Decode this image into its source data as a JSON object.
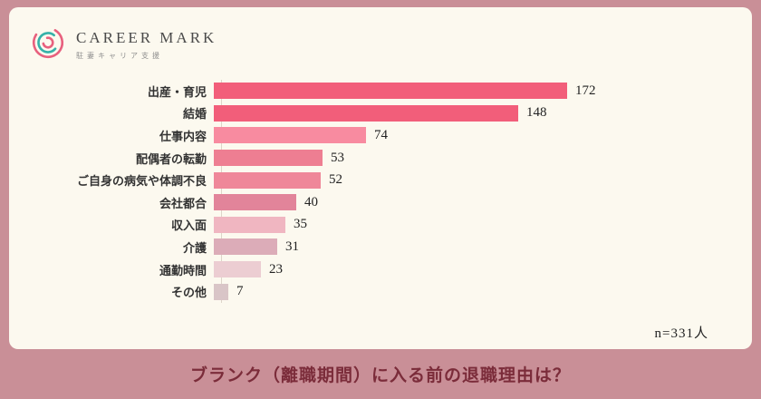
{
  "page": {
    "bg_color": "#c98f97",
    "card_bg": "#fcf9ef"
  },
  "logo": {
    "name": "CAREER MARK",
    "subtitle": "駐妻キャリア支援"
  },
  "chart_data": {
    "type": "bar",
    "orientation": "horizontal",
    "title": "",
    "categories": [
      "出産・育児",
      "結婚",
      "仕事内容",
      "配偶者の転勤",
      "ご自身の病気や体調不良",
      "会社都合",
      "収入面",
      "介護",
      "通勤時間",
      "その他"
    ],
    "values": [
      172,
      148,
      74,
      53,
      52,
      40,
      35,
      31,
      23,
      7
    ],
    "bar_colors": [
      "#f25e7a",
      "#f25e7a",
      "#f88ba0",
      "#ee7e92",
      "#ef8799",
      "#e2849a",
      "#f0b6c1",
      "#dcacb8",
      "#eccdd2",
      "#d9c5c7"
    ],
    "xlim": [
      0,
      190
    ],
    "grid": "off",
    "value_labels": "right of bars",
    "note": "n=331人"
  },
  "footer": {
    "title": "ブランク（離職期間）に入る前の退職理由は？",
    "title_color": "#7b2c3a"
  }
}
